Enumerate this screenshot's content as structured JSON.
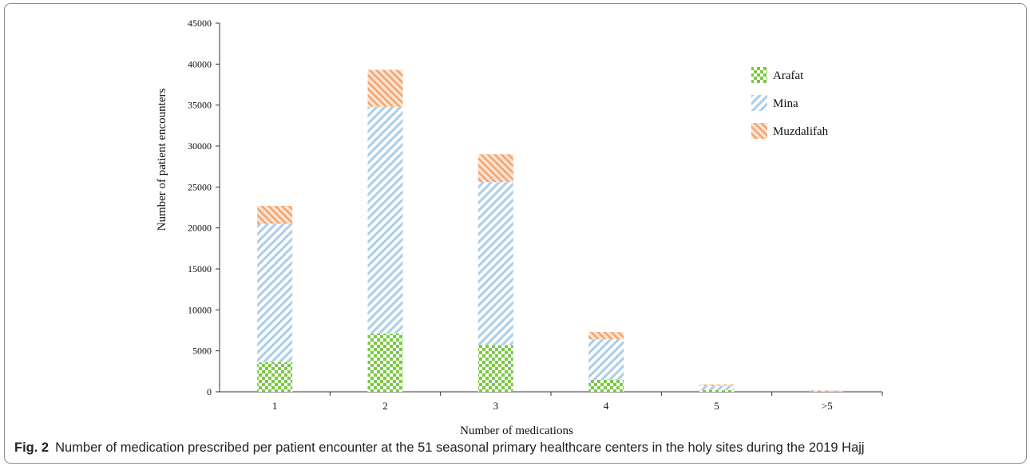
{
  "chart_data": {
    "type": "bar",
    "stacked": true,
    "categories": [
      "1",
      "2",
      "3",
      "4",
      "5",
      ">5"
    ],
    "series": [
      {
        "name": "Arafat",
        "values": [
          3600,
          7100,
          5700,
          1500,
          200,
          30
        ],
        "color": "#7ac943",
        "pattern": "checker"
      },
      {
        "name": "Mina",
        "values": [
          16900,
          27700,
          19900,
          4900,
          550,
          100
        ],
        "color": "#a9cde9",
        "pattern": "diagonal-hatch"
      },
      {
        "name": "Muzdalifah",
        "values": [
          2200,
          4500,
          3400,
          900,
          150,
          40
        ],
        "color": "#f2a46f",
        "pattern": "diagonal-hatch"
      }
    ],
    "xlabel": "Number of medications",
    "ylabel": "Number of patient encounters",
    "ylim": [
      0,
      45000
    ],
    "yticks": [
      0,
      5000,
      10000,
      15000,
      20000,
      25000,
      30000,
      35000,
      40000,
      45000
    ],
    "legend_position": "top-right",
    "grid": false
  },
  "caption": {
    "label": "Fig. 2",
    "text": "Number of medication prescribed per patient encounter at the 51 seasonal primary healthcare centers in the holy sites during the 2019 Hajj"
  }
}
